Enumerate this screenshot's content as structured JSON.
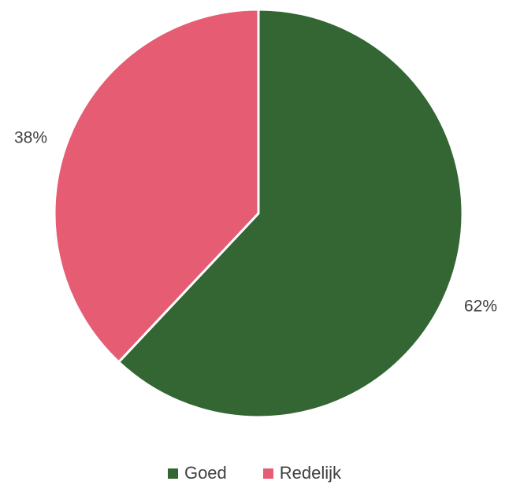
{
  "chart_data": {
    "type": "pie",
    "categories": [
      "Goed",
      "Redelijk"
    ],
    "values": [
      62,
      38
    ],
    "labels": [
      "62%",
      "38%"
    ],
    "colors": [
      "#336633",
      "#E65C73"
    ],
    "legend_position": "bottom",
    "start_angle": "12 o'clock",
    "direction": "clockwise"
  }
}
